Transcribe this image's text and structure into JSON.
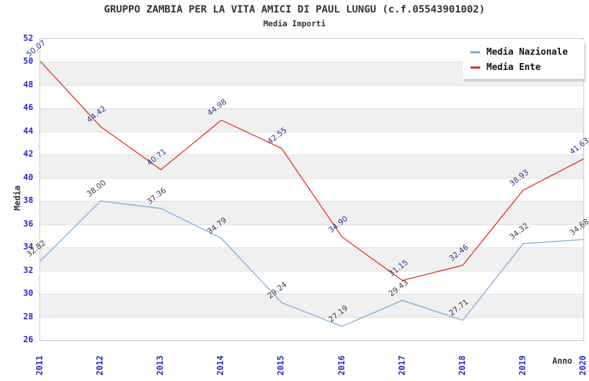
{
  "chart_data": {
    "type": "line",
    "title": "GRUPPO ZAMBIA PER LA VITA AMICI DI PAUL LUNGU (c.f.05543901002)",
    "subtitle": "Media Importi",
    "xlabel": "Anno",
    "ylabel": "Media",
    "x": [
      "2011",
      "2012",
      "2013",
      "2014",
      "2015",
      "2016",
      "2017",
      "2018",
      "2019",
      "2020"
    ],
    "ylim": [
      26,
      52
    ],
    "ytick_step": 2,
    "grid": "horizontal-alternating-bands",
    "legend_position": "top-right",
    "series": [
      {
        "name": "Media Nazionale",
        "color": "#79a9dc",
        "label_color": "#3d3d3d",
        "values": [
          32.82,
          38.0,
          37.36,
          34.79,
          29.24,
          27.19,
          29.43,
          27.71,
          34.32,
          34.68
        ],
        "labels": [
          "32.82",
          "38.00",
          "37.36",
          "34.79",
          "29.24",
          "27.19",
          "29.43",
          "27.71",
          "34.32",
          "34.68"
        ]
      },
      {
        "name": "Media Ente",
        "color": "#e8281e",
        "label_color": "#333399",
        "values": [
          50.07,
          44.42,
          40.71,
          44.98,
          42.55,
          34.9,
          31.15,
          32.46,
          38.93,
          41.63
        ],
        "labels": [
          "50.07",
          "44.42",
          "40.71",
          "44.98",
          "42.55",
          "34.90",
          "31.15",
          "32.46",
          "38.93",
          "41.63"
        ]
      }
    ]
  },
  "colors": {
    "tick_label": "#2b2bcc",
    "axis_title": "#333333",
    "band_gray": "#f0f0f0",
    "band_white": "#ffffff",
    "gridline": "#e2e2e2",
    "plot_border": "#c8c8c8"
  }
}
